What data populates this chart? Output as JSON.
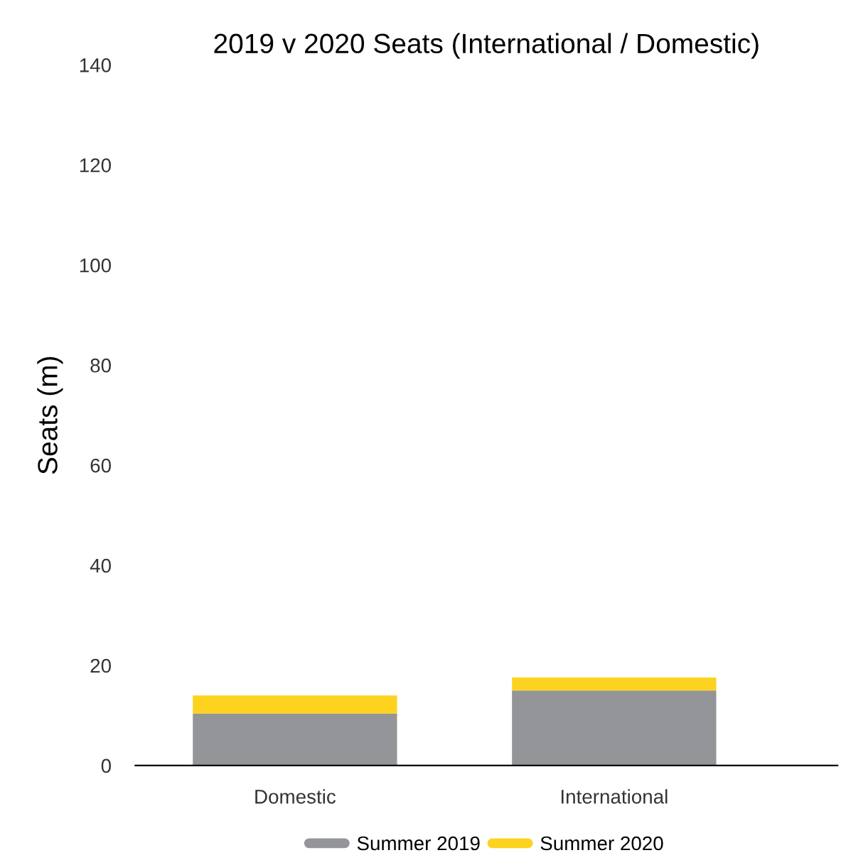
{
  "chart_data": {
    "type": "bar",
    "title": "2019 v 2020 Seats (International / Domestic)",
    "ylabel": "Seats (m)",
    "categories": [
      "Domestic",
      "International"
    ],
    "stacked": true,
    "series": [
      {
        "name": "Summer 2019",
        "color": "#939598",
        "values": [
          10.4,
          15.0
        ]
      },
      {
        "name": "Summer 2020",
        "color": "#fdd31f",
        "values": [
          3.6,
          2.6
        ]
      }
    ],
    "ylim": [
      0,
      140
    ],
    "yticks": [
      0,
      20,
      40,
      60,
      80,
      100,
      120,
      140
    ],
    "grid": false,
    "legend": "bottom"
  }
}
